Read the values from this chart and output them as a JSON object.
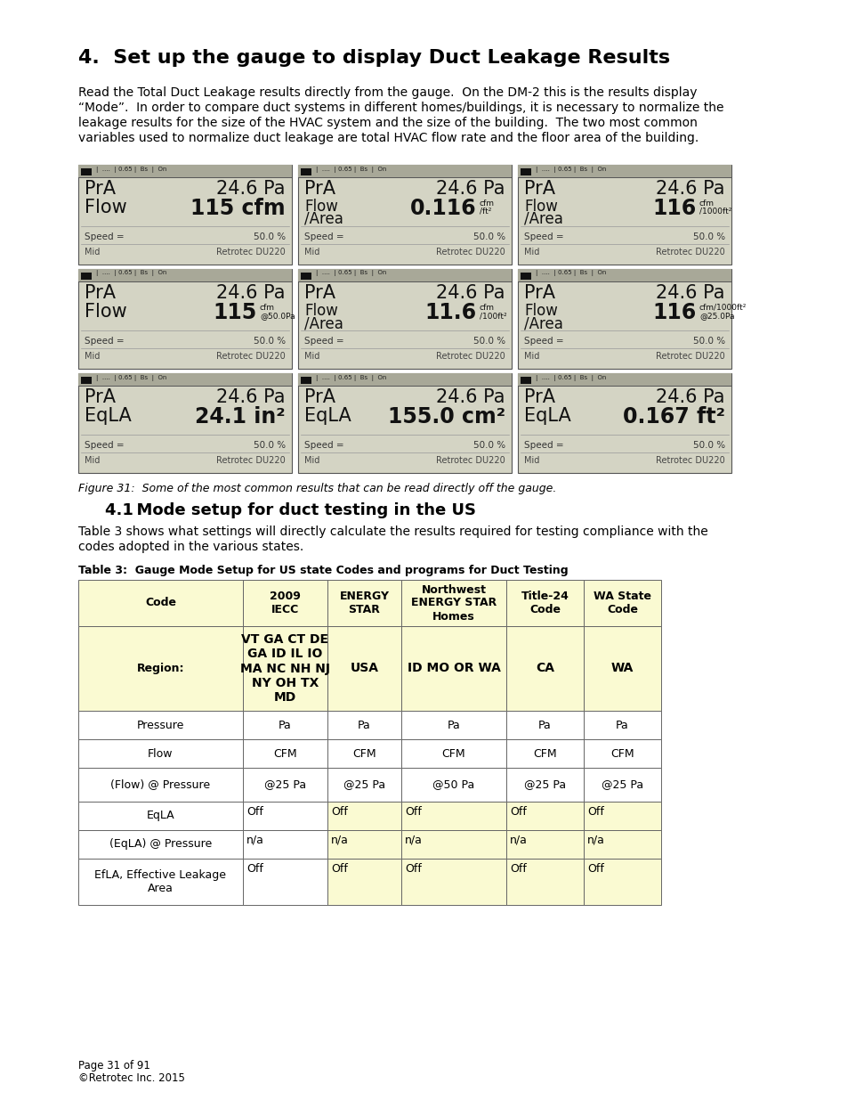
{
  "title": "4.  Set up the gauge to display Duct Leakage Results",
  "body_lines": [
    "Read the Total Duct Leakage results directly from the gauge.  On the DM-2 this is the results display",
    "“Mode”.  In order to compare duct systems in different homes/buildings, it is necessary to normalize the",
    "leakage results for the size of the HVAC system and the size of the building.  The two most common",
    "variables used to normalize duct leakage are total HVAC flow rate and the floor area of the building."
  ],
  "figure_caption": "Figure 31:  Some of the most common results that can be read directly off the gauge.",
  "section_title": "4.1 Mode setup for duct testing in the US",
  "section_body_lines": [
    "Table 3 shows what settings will directly calculate the results required for testing compliance with the",
    "codes adopted in the various states."
  ],
  "table_caption": "Table 3:  Gauge Mode Setup for US state Codes and programs for Duct Testing",
  "gauge_bg": "#d4d4c4",
  "gauge_header_bg": "#a8a898",
  "page_bg": "#ffffff",
  "table_header_bg": "#fafad2",
  "table_body_bg": "#fafad2",
  "table_white_bg": "#ffffff",
  "table_border": "#666666",
  "gauge_displays": [
    {
      "row": 0,
      "col": 0,
      "line1_left": "PrA",
      "line1_right": "24.6 Pa",
      "line2_left": "Flow",
      "line2_right": "115 cfm",
      "small_unit": ""
    },
    {
      "row": 0,
      "col": 1,
      "line1_left": "PrA",
      "line1_right": "24.6 Pa",
      "line2_left": "Flow\n/Area",
      "line2_right": "0.116",
      "small_unit": "cfm\n/ft²"
    },
    {
      "row": 0,
      "col": 2,
      "line1_left": "PrA",
      "line1_right": "24.6 Pa",
      "line2_left": "Flow\n/Area",
      "line2_right": "116",
      "small_unit": "cfm\n/1000ft²"
    },
    {
      "row": 1,
      "col": 0,
      "line1_left": "PrA",
      "line1_right": "24.6 Pa",
      "line2_left": "Flow",
      "line2_right": "115",
      "small_unit": "cfm\n@50.0Pa"
    },
    {
      "row": 1,
      "col": 1,
      "line1_left": "PrA",
      "line1_right": "24.6 Pa",
      "line2_left": "Flow\n/Area",
      "line2_right": "11.6",
      "small_unit": "cfm\n/100ft²"
    },
    {
      "row": 1,
      "col": 2,
      "line1_left": "PrA",
      "line1_right": "24.6 Pa",
      "line2_left": "Flow\n/Area",
      "line2_right": "116",
      "small_unit": "cfm/1000ft²\n@25.0Pa"
    },
    {
      "row": 2,
      "col": 0,
      "line1_left": "PrA",
      "line1_right": "24.6 Pa",
      "line2_left": "EqLA",
      "line2_right": "24.1 in²",
      "small_unit": ""
    },
    {
      "row": 2,
      "col": 1,
      "line1_left": "PrA",
      "line1_right": "24.6 Pa",
      "line2_left": "EqLA",
      "line2_right": "155.0 cm²",
      "small_unit": ""
    },
    {
      "row": 2,
      "col": 2,
      "line1_left": "PrA",
      "line1_right": "24.6 Pa",
      "line2_left": "EqLA",
      "line2_right": "0.167 ft²",
      "small_unit": ""
    }
  ],
  "table_headers": [
    "Code",
    "2009\nIECC",
    "ENERGY\nSTAR",
    "Northwest\nENERGY STAR\nHomes",
    "Title-24\nCode",
    "WA State\nCode"
  ],
  "table_rows": [
    {
      "label": "Region:",
      "values": [
        "VT GA CT DE\nGA ID IL IO\nMA NC NH NJ\nNY OH TX\nMD",
        "USA",
        "ID MO OR WA",
        "CA",
        "WA"
      ],
      "label_bold": true,
      "val_bold": true,
      "label_bg": "header",
      "val_bg": "header",
      "first_val_bg": "header"
    },
    {
      "label": "Pressure",
      "values": [
        "Pa",
        "Pa",
        "Pa",
        "Pa",
        "Pa"
      ],
      "label_bold": false,
      "val_bold": false,
      "label_bg": "white",
      "val_bg": "white",
      "first_val_bg": "white"
    },
    {
      "label": "Flow",
      "values": [
        "CFM",
        "CFM",
        "CFM",
        "CFM",
        "CFM"
      ],
      "label_bold": false,
      "val_bold": false,
      "label_bg": "white",
      "val_bg": "white",
      "first_val_bg": "white"
    },
    {
      "label": "(Flow) @ Pressure",
      "values": [
        "@25 Pa",
        "@25 Pa",
        "@50 Pa",
        "@25 Pa",
        "@25 Pa"
      ],
      "label_bold": false,
      "val_bold": false,
      "label_bg": "white",
      "val_bg": "white",
      "first_val_bg": "white"
    },
    {
      "label": "EqLA",
      "values": [
        "Off",
        "Off",
        "Off",
        "Off",
        "Off"
      ],
      "label_bold": false,
      "val_bold": false,
      "label_bg": "white",
      "val_bg": "header",
      "first_val_bg": "white",
      "val_topleft": true
    },
    {
      "label": "(EqLA) @ Pressure",
      "values": [
        "n/a",
        "n/a",
        "n/a",
        "n/a",
        "n/a"
      ],
      "label_bold": false,
      "val_bold": false,
      "label_bg": "white",
      "val_bg": "header",
      "first_val_bg": "white",
      "val_topleft": true
    },
    {
      "label": "EfLA, Effective Leakage\nArea",
      "values": [
        "Off",
        "Off",
        "Off",
        "Off",
        "Off"
      ],
      "label_bold": false,
      "val_bold": false,
      "label_bg": "white",
      "val_bg": "header",
      "first_val_bg": "white",
      "val_topleft": true
    }
  ],
  "footer_line1": "Page 31 of 91",
  "footer_line2": "©Retrotec Inc. 2015"
}
